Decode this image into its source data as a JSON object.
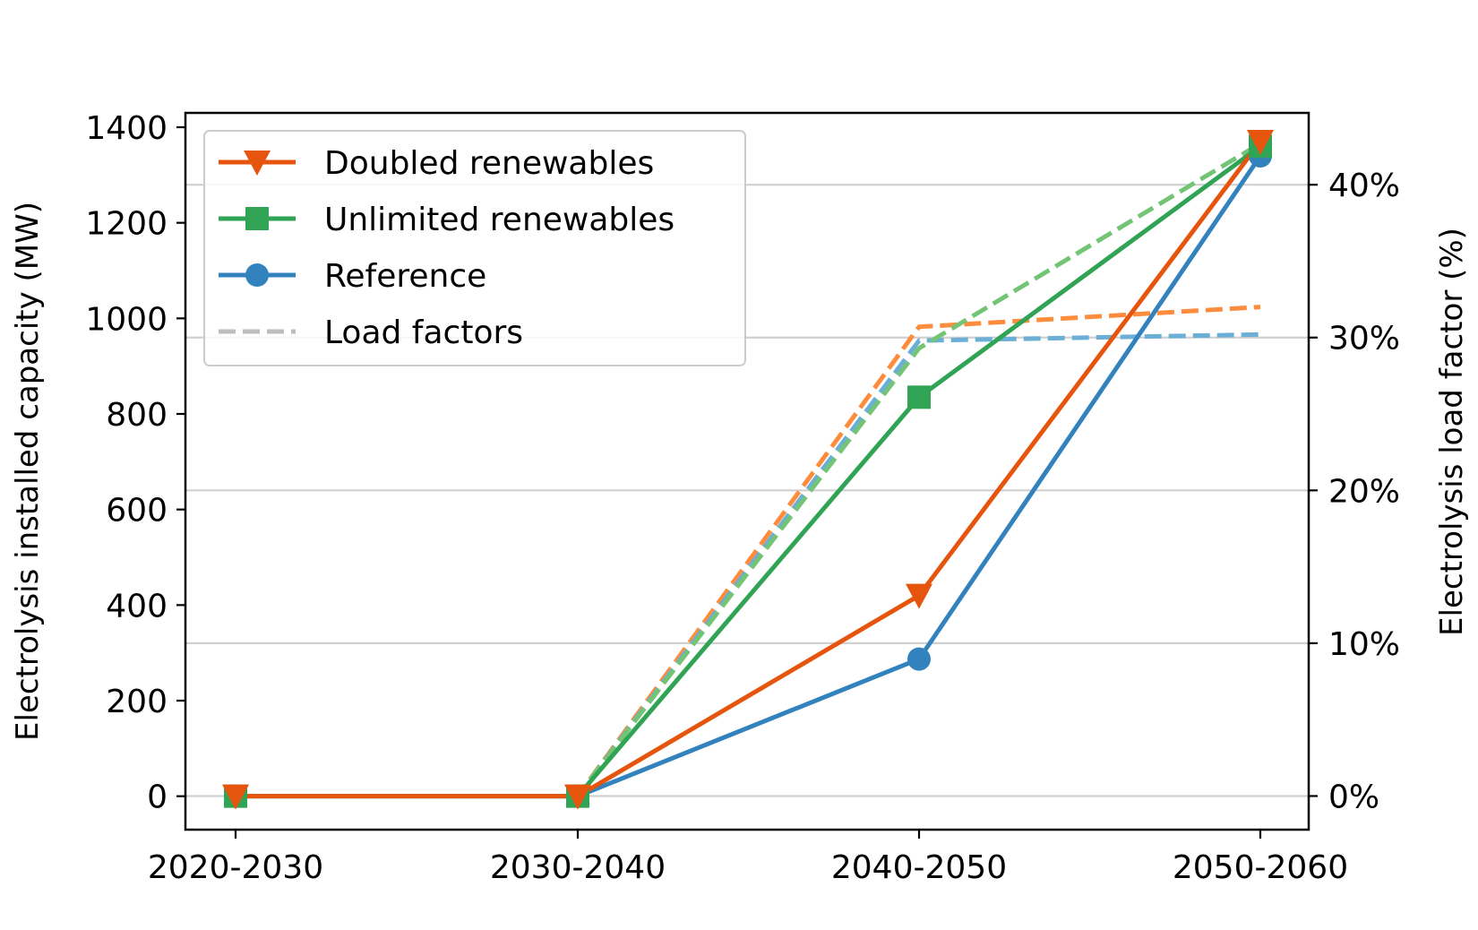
{
  "chart_data": {
    "type": "line",
    "categories": [
      "2020-2030",
      "2030-2040",
      "2040-2050",
      "2050-2060"
    ],
    "ylabel_left": "Electrolysis installed capacity (MW)",
    "ylabel_right": "Electrolysis load factor (%)",
    "ylim_left": [
      -70,
      1430
    ],
    "yticks_left": [
      0,
      200,
      400,
      600,
      800,
      1000,
      1200,
      1400
    ],
    "yticks_left_labels": [
      "0",
      "200",
      "400",
      "600",
      "800",
      "1000",
      "1200",
      "1400"
    ],
    "ylim_right": [
      -2.2,
      44.7
    ],
    "yticks_right": [
      0,
      10,
      20,
      30,
      40
    ],
    "yticks_right_labels": [
      "0%",
      "10%",
      "20%",
      "30%",
      "40%"
    ],
    "grid": "horizontal lines at right-axis ticks",
    "legend_placement": "top-left",
    "series": [
      {
        "name": "Doubled renewables",
        "color": "#e6550d",
        "marker": "triangle-down",
        "values": [
          0,
          0,
          420,
          1370
        ]
      },
      {
        "name": "Unlimited renewables",
        "color": "#31a354",
        "marker": "square",
        "values": [
          0,
          0,
          835,
          1360
        ]
      },
      {
        "name": "Reference",
        "color": "#3182bd",
        "marker": "circle",
        "values": [
          0,
          0,
          287,
          1340
        ]
      }
    ],
    "load_factors": {
      "name": "Load factors",
      "legend_color": "#bdbdbd",
      "series": [
        {
          "of": "Doubled renewables",
          "color": "#fd8d3c",
          "values": [
            0,
            0,
            30.7,
            32.0
          ]
        },
        {
          "of": "Reference",
          "color": "#6baed6",
          "values": [
            0,
            0,
            29.8,
            30.2
          ]
        },
        {
          "of": "Unlimited renewables",
          "color": "#74c476",
          "values": [
            0,
            0,
            29.3,
            42.7
          ]
        }
      ]
    }
  }
}
